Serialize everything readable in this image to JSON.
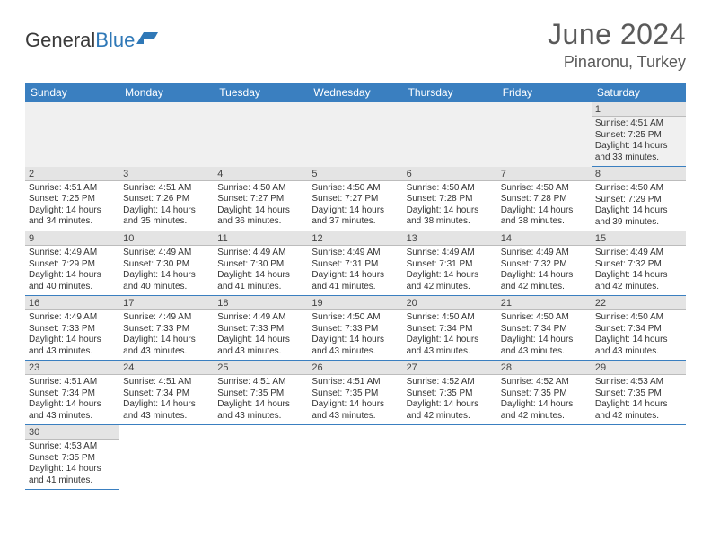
{
  "brand": {
    "name1": "General",
    "name2": "Blue"
  },
  "title": "June 2024",
  "location": "Pinaronu, Turkey",
  "colors": {
    "header_bg": "#3a7fc0",
    "header_text": "#ffffff",
    "daynum_bg": "#e4e4e4",
    "border": "#3a7fc0",
    "text": "#333333",
    "title": "#5a5a5a",
    "logo_blue": "#2f78b7"
  },
  "typography": {
    "title_fontsize": 32,
    "location_fontsize": 18,
    "header_fontsize": 12,
    "daynum_fontsize": 11,
    "body_fontsize": 10
  },
  "layout": {
    "columns": 7,
    "rows": 6,
    "start_weekday": "Sunday",
    "first_day_column": 6
  },
  "weekdays": [
    "Sunday",
    "Monday",
    "Tuesday",
    "Wednesday",
    "Thursday",
    "Friday",
    "Saturday"
  ],
  "days": [
    {
      "n": 1,
      "sunrise": "4:51 AM",
      "sunset": "7:25 PM",
      "daylight": "14 hours and 33 minutes."
    },
    {
      "n": 2,
      "sunrise": "4:51 AM",
      "sunset": "7:25 PM",
      "daylight": "14 hours and 34 minutes."
    },
    {
      "n": 3,
      "sunrise": "4:51 AM",
      "sunset": "7:26 PM",
      "daylight": "14 hours and 35 minutes."
    },
    {
      "n": 4,
      "sunrise": "4:50 AM",
      "sunset": "7:27 PM",
      "daylight": "14 hours and 36 minutes."
    },
    {
      "n": 5,
      "sunrise": "4:50 AM",
      "sunset": "7:27 PM",
      "daylight": "14 hours and 37 minutes."
    },
    {
      "n": 6,
      "sunrise": "4:50 AM",
      "sunset": "7:28 PM",
      "daylight": "14 hours and 38 minutes."
    },
    {
      "n": 7,
      "sunrise": "4:50 AM",
      "sunset": "7:28 PM",
      "daylight": "14 hours and 38 minutes."
    },
    {
      "n": 8,
      "sunrise": "4:50 AM",
      "sunset": "7:29 PM",
      "daylight": "14 hours and 39 minutes."
    },
    {
      "n": 9,
      "sunrise": "4:49 AM",
      "sunset": "7:29 PM",
      "daylight": "14 hours and 40 minutes."
    },
    {
      "n": 10,
      "sunrise": "4:49 AM",
      "sunset": "7:30 PM",
      "daylight": "14 hours and 40 minutes."
    },
    {
      "n": 11,
      "sunrise": "4:49 AM",
      "sunset": "7:30 PM",
      "daylight": "14 hours and 41 minutes."
    },
    {
      "n": 12,
      "sunrise": "4:49 AM",
      "sunset": "7:31 PM",
      "daylight": "14 hours and 41 minutes."
    },
    {
      "n": 13,
      "sunrise": "4:49 AM",
      "sunset": "7:31 PM",
      "daylight": "14 hours and 42 minutes."
    },
    {
      "n": 14,
      "sunrise": "4:49 AM",
      "sunset": "7:32 PM",
      "daylight": "14 hours and 42 minutes."
    },
    {
      "n": 15,
      "sunrise": "4:49 AM",
      "sunset": "7:32 PM",
      "daylight": "14 hours and 42 minutes."
    },
    {
      "n": 16,
      "sunrise": "4:49 AM",
      "sunset": "7:33 PM",
      "daylight": "14 hours and 43 minutes."
    },
    {
      "n": 17,
      "sunrise": "4:49 AM",
      "sunset": "7:33 PM",
      "daylight": "14 hours and 43 minutes."
    },
    {
      "n": 18,
      "sunrise": "4:49 AM",
      "sunset": "7:33 PM",
      "daylight": "14 hours and 43 minutes."
    },
    {
      "n": 19,
      "sunrise": "4:50 AM",
      "sunset": "7:33 PM",
      "daylight": "14 hours and 43 minutes."
    },
    {
      "n": 20,
      "sunrise": "4:50 AM",
      "sunset": "7:34 PM",
      "daylight": "14 hours and 43 minutes."
    },
    {
      "n": 21,
      "sunrise": "4:50 AM",
      "sunset": "7:34 PM",
      "daylight": "14 hours and 43 minutes."
    },
    {
      "n": 22,
      "sunrise": "4:50 AM",
      "sunset": "7:34 PM",
      "daylight": "14 hours and 43 minutes."
    },
    {
      "n": 23,
      "sunrise": "4:51 AM",
      "sunset": "7:34 PM",
      "daylight": "14 hours and 43 minutes."
    },
    {
      "n": 24,
      "sunrise": "4:51 AM",
      "sunset": "7:34 PM",
      "daylight": "14 hours and 43 minutes."
    },
    {
      "n": 25,
      "sunrise": "4:51 AM",
      "sunset": "7:35 PM",
      "daylight": "14 hours and 43 minutes."
    },
    {
      "n": 26,
      "sunrise": "4:51 AM",
      "sunset": "7:35 PM",
      "daylight": "14 hours and 43 minutes."
    },
    {
      "n": 27,
      "sunrise": "4:52 AM",
      "sunset": "7:35 PM",
      "daylight": "14 hours and 42 minutes."
    },
    {
      "n": 28,
      "sunrise": "4:52 AM",
      "sunset": "7:35 PM",
      "daylight": "14 hours and 42 minutes."
    },
    {
      "n": 29,
      "sunrise": "4:53 AM",
      "sunset": "7:35 PM",
      "daylight": "14 hours and 42 minutes."
    },
    {
      "n": 30,
      "sunrise": "4:53 AM",
      "sunset": "7:35 PM",
      "daylight": "14 hours and 41 minutes."
    }
  ],
  "labels": {
    "sunrise_prefix": "Sunrise: ",
    "sunset_prefix": "Sunset: ",
    "daylight_prefix": "Daylight: "
  }
}
